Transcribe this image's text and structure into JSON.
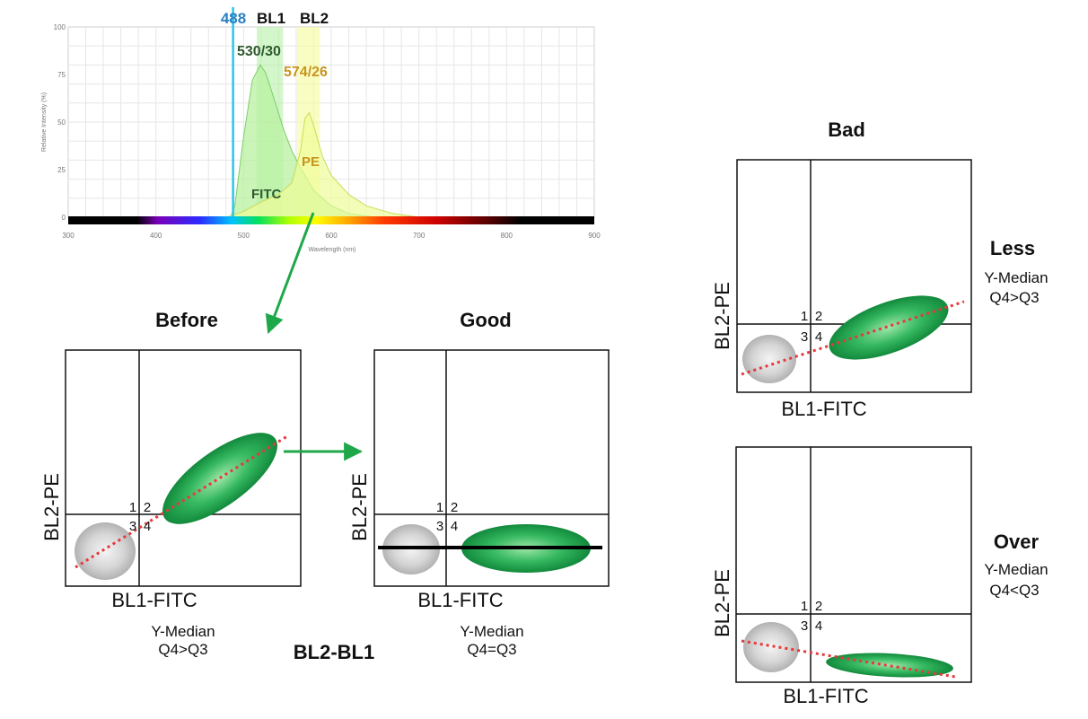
{
  "spectrum": {
    "laser_label": "488",
    "bl1_label": "BL1",
    "bl2_label": "BL2",
    "filter1_label": "530/30",
    "filter2_label": "574/26",
    "fitc_label": "FITC",
    "pe_label": "PE",
    "ylabel": "Relative Intensity (%)",
    "xlabel": "Wavelength (nm)",
    "y_ticks": [
      "0",
      "25",
      "50",
      "75",
      "100"
    ],
    "x_ticks": [
      "300",
      "400",
      "500",
      "600",
      "700",
      "800",
      "900"
    ]
  },
  "chart_data": {
    "type": "line",
    "title": "",
    "xlabel": "Wavelength (nm)",
    "ylabel": "Relative Intensity (%)",
    "xlim": [
      300,
      900
    ],
    "ylim": [
      0,
      100
    ],
    "laser_line_nm": 488,
    "filter_bands": [
      {
        "name": "530/30",
        "min": 515,
        "max": 545
      },
      {
        "name": "574/26",
        "min": 561,
        "max": 587
      }
    ],
    "series": [
      {
        "name": "FITC",
        "x": [
          485,
          490,
          500,
          510,
          519,
          525,
          535,
          545,
          555,
          565,
          580,
          600,
          620,
          650
        ],
        "values": [
          0,
          6,
          42,
          72,
          80,
          76,
          62,
          47,
          35,
          26,
          14,
          6,
          2,
          0
        ]
      },
      {
        "name": "PE",
        "x": [
          480,
          500,
          520,
          540,
          555,
          565,
          570,
          575,
          580,
          590,
          600,
          620,
          640,
          670,
          700
        ],
        "values": [
          0,
          3,
          8,
          12,
          18,
          35,
          52,
          55,
          48,
          32,
          22,
          12,
          6,
          2,
          0
        ]
      }
    ]
  },
  "panels": {
    "x_axis_label": "BL1-FITC",
    "y_axis_label": "BL2-PE",
    "q1": "1",
    "q2": "2",
    "q3": "3",
    "q4": "4",
    "before_title": "Before",
    "good_title": "Good",
    "bad_title": "Bad",
    "before_caption_1": "Y-Median",
    "before_caption_2": "Q4>Q3",
    "good_caption_1": "Y-Median",
    "good_caption_2": "Q4=Q3",
    "bottom_title": "BL2-BL1",
    "less_title": "Less",
    "less_caption_1": "Y-Median",
    "less_caption_2": "Q4>Q3",
    "over_title": "Over",
    "over_caption_1": "Y-Median",
    "over_caption_2": "Q4<Q3"
  },
  "colors": {
    "laser": "#2ec4ea",
    "fitc_fill": "#b8f0a0",
    "pe_fill": "#eefc9a",
    "green_blob": "#1f9e4a",
    "gray_blob": "#c8c8c8",
    "diag_line": "#e8383c",
    "label_blue": "#2a7fc2",
    "label_orange": "#c8941e",
    "label_dkgreen": "#2e5a2e"
  }
}
